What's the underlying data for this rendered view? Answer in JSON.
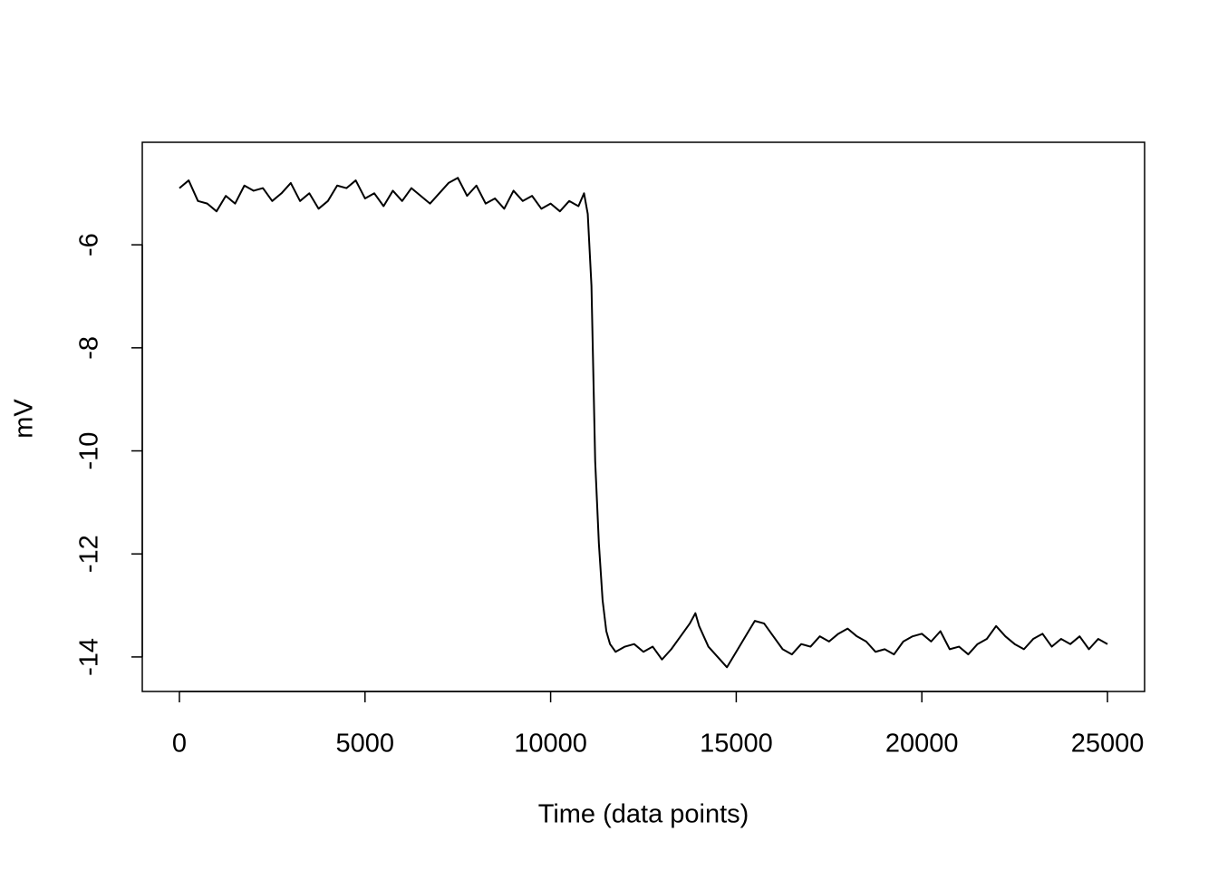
{
  "chart_data": {
    "type": "line",
    "xlabel": "Time (data points)",
    "ylabel": "mV",
    "color": "#000000",
    "x": [
      0,
      250,
      500,
      750,
      1000,
      1250,
      1500,
      1750,
      2000,
      2250,
      2500,
      2750,
      3000,
      3250,
      3500,
      3750,
      4000,
      4250,
      4500,
      4750,
      5000,
      5250,
      5500,
      5750,
      6000,
      6250,
      6500,
      6750,
      7000,
      7250,
      7500,
      7750,
      8000,
      8250,
      8500,
      8750,
      9000,
      9250,
      9500,
      9750,
      10000,
      10250,
      10500,
      10750,
      10900,
      11000,
      11100,
      11200,
      11300,
      11400,
      11500,
      11600,
      11750,
      12000,
      12250,
      12500,
      12750,
      13000,
      13250,
      13500,
      13750,
      13900,
      14000,
      14250,
      14500,
      14750,
      15000,
      15250,
      15500,
      15750,
      16000,
      16250,
      16500,
      16750,
      17000,
      17250,
      17500,
      17750,
      18000,
      18250,
      18500,
      18750,
      19000,
      19250,
      19500,
      19750,
      20000,
      20250,
      20500,
      20750,
      21000,
      21250,
      21500,
      21750,
      22000,
      22250,
      22500,
      22750,
      23000,
      23250,
      23500,
      23750,
      24000,
      24250,
      24500,
      24750,
      25000
    ],
    "values": [
      -4.9,
      -4.75,
      -5.15,
      -5.2,
      -5.35,
      -5.05,
      -5.2,
      -4.85,
      -4.95,
      -4.9,
      -5.15,
      -5.0,
      -4.8,
      -5.15,
      -5.0,
      -5.3,
      -5.15,
      -4.85,
      -4.9,
      -4.75,
      -5.1,
      -5.0,
      -5.25,
      -4.95,
      -5.15,
      -4.9,
      -5.05,
      -5.2,
      -5.0,
      -4.8,
      -4.7,
      -5.05,
      -4.85,
      -5.2,
      -5.1,
      -5.3,
      -4.95,
      -5.15,
      -5.05,
      -5.3,
      -5.2,
      -5.35,
      -5.15,
      -5.25,
      -5.0,
      -5.4,
      -6.8,
      -10.2,
      -11.8,
      -12.9,
      -13.5,
      -13.75,
      -13.9,
      -13.8,
      -13.75,
      -13.9,
      -13.8,
      -14.05,
      -13.85,
      -13.6,
      -13.35,
      -13.15,
      -13.4,
      -13.8,
      -14.0,
      -14.2,
      -13.9,
      -13.6,
      -13.3,
      -13.35,
      -13.6,
      -13.85,
      -13.95,
      -13.75,
      -13.8,
      -13.6,
      -13.7,
      -13.55,
      -13.45,
      -13.6,
      -13.7,
      -13.9,
      -13.85,
      -13.95,
      -13.7,
      -13.6,
      -13.55,
      -13.7,
      -13.5,
      -13.85,
      -13.8,
      -13.95,
      -13.75,
      -13.65,
      -13.4,
      -13.6,
      -13.75,
      -13.85,
      -13.65,
      -13.55,
      -13.8,
      -13.65,
      -13.75,
      -13.6,
      -13.85,
      -13.65,
      -13.75
    ],
    "xlim": [
      -1000,
      26000
    ],
    "xticks": [
      0,
      5000,
      10000,
      15000,
      20000,
      25000
    ],
    "ylim": [
      -14.67,
      -4.01
    ],
    "yticks": [
      -14,
      -12,
      -10,
      -8,
      -6
    ]
  }
}
